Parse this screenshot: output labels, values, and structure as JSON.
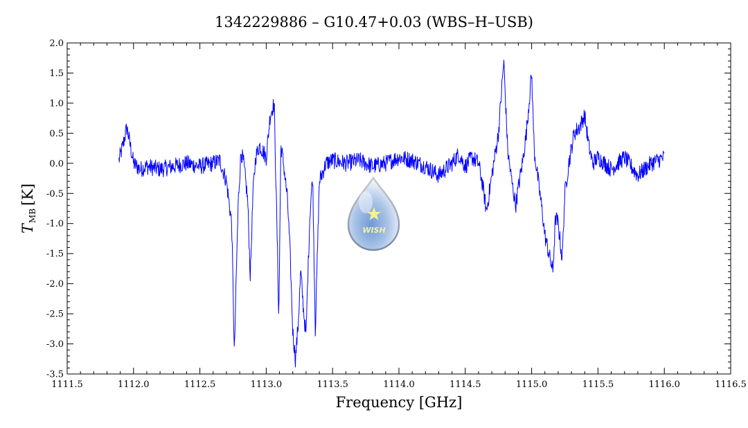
{
  "chart_data": {
    "type": "line",
    "title": "1342229886 – G10.47+0.03 (WBS–H–USB)",
    "xlabel": "Frequency [GHz]",
    "ylabel_main": "T",
    "ylabel_sub": "MB",
    "ylabel_unit": "[K]",
    "xlim": [
      1111.5,
      1116.5
    ],
    "ylim": [
      -3.5,
      2.0
    ],
    "x_ticks": [
      "1111.5",
      "1112.0",
      "1112.5",
      "1113.0",
      "1113.5",
      "1114.0",
      "1114.5",
      "1115.0",
      "1115.5",
      "1116.0",
      "1116.5"
    ],
    "y_ticks": [
      "2.0",
      "1.5",
      "1.0",
      "0.5",
      "0.0",
      "-0.5",
      "-1.0",
      "-1.5",
      "-2.0",
      "-2.5",
      "-3.0",
      "-3.5"
    ],
    "grid": false,
    "logo_text": "WISH",
    "series": [
      {
        "color": "#0000ff",
        "x": [
          1111.89,
          1111.92,
          1111.95,
          1112.0,
          1112.05,
          1112.1,
          1112.2,
          1112.3,
          1112.4,
          1112.5,
          1112.6,
          1112.65,
          1112.7,
          1112.74,
          1112.76,
          1112.775,
          1112.79,
          1112.81,
          1112.83,
          1112.86,
          1112.88,
          1112.9,
          1112.92,
          1112.95,
          1113.0,
          1113.03,
          1113.06,
          1113.08,
          1113.095,
          1113.11,
          1113.13,
          1113.16,
          1113.18,
          1113.2,
          1113.22,
          1113.24,
          1113.26,
          1113.28,
          1113.3,
          1113.31,
          1113.33,
          1113.35,
          1113.37,
          1113.4,
          1113.45,
          1113.5,
          1113.6,
          1113.7,
          1113.8,
          1113.9,
          1114.0,
          1114.1,
          1114.2,
          1114.3,
          1114.4,
          1114.45,
          1114.5,
          1114.55,
          1114.6,
          1114.63,
          1114.66,
          1114.7,
          1114.75,
          1114.79,
          1114.82,
          1114.85,
          1114.88,
          1114.9,
          1114.93,
          1114.96,
          1115.0,
          1115.02,
          1115.05,
          1115.08,
          1115.1,
          1115.13,
          1115.16,
          1115.18,
          1115.2,
          1115.23,
          1115.25,
          1115.28,
          1115.32,
          1115.36,
          1115.4,
          1115.43,
          1115.46,
          1115.5,
          1115.6,
          1115.7,
          1115.8,
          1115.9,
          1116.0
        ],
        "y": [
          0.05,
          0.3,
          0.6,
          0.0,
          -0.1,
          -0.05,
          -0.1,
          -0.05,
          0.0,
          -0.05,
          0.0,
          0.05,
          -0.3,
          -1.0,
          -3.2,
          -1.8,
          -0.6,
          0.2,
          0.0,
          -0.6,
          -1.9,
          -0.5,
          0.1,
          0.3,
          0.1,
          0.8,
          1.0,
          -1.0,
          -2.6,
          0.3,
          0.0,
          -0.6,
          -1.5,
          -2.8,
          -3.25,
          -2.7,
          -1.8,
          -2.4,
          -2.9,
          -2.1,
          -0.8,
          -0.2,
          -2.8,
          -0.3,
          0.0,
          0.05,
          0.0,
          0.05,
          -0.05,
          0.0,
          0.1,
          0.05,
          -0.05,
          -0.2,
          0.0,
          0.15,
          -0.05,
          0.1,
          0.0,
          -0.35,
          -0.8,
          -0.2,
          0.5,
          1.7,
          0.2,
          -0.3,
          -0.7,
          -0.4,
          0.0,
          0.5,
          1.5,
          0.2,
          -0.3,
          -0.8,
          -1.2,
          -1.5,
          -1.8,
          -0.9,
          -1.0,
          -1.6,
          -0.5,
          0.0,
          0.5,
          0.6,
          0.8,
          0.3,
          0.0,
          0.1,
          -0.1,
          0.1,
          -0.2,
          0.0,
          0.1
        ]
      }
    ]
  }
}
